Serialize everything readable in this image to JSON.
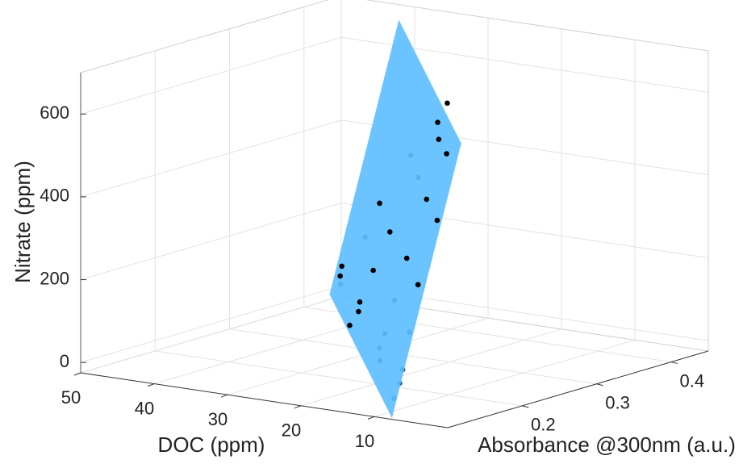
{
  "chart_data": {
    "type": "scatter3d",
    "xlabel": "DOC (ppm)",
    "ylabel": "Absorbance @300nm (a.u.)",
    "zlabel": "Nitrate (ppm)",
    "xlim": [
      0,
      50
    ],
    "ylim": [
      0.1,
      0.45
    ],
    "zlim": [
      -25,
      700
    ],
    "xticks": [
      10,
      20,
      30,
      40,
      50
    ],
    "yticks": [
      0.2,
      0.3,
      0.4
    ],
    "zticks": [
      0,
      200,
      400,
      600
    ],
    "grid": true,
    "surface": {
      "color": "#5bbcff",
      "x": [
        8,
        16.5,
        16.5,
        8
      ],
      "y": [
        0.104,
        0.104,
        0.197,
        0.197
      ],
      "z": [
        -25,
        251,
        865,
        589
      ]
    },
    "series": [
      {
        "color": "#1f5a85",
        "x": [
          12.35,
          11.11,
          14.59,
          15.71,
          10.49,
          10.59,
          8.36,
          10.72,
          10.42,
          8.16,
          8.07,
          8.23
        ],
        "y": [
          0.172,
          0.17,
          0.133,
          0.111,
          0.132,
          0.12,
          0.131,
          0.114,
          0.112,
          0.12,
          0.115,
          0.109
        ],
        "z": [
          562,
          513,
          379,
          274,
          238,
          163,
          167,
          132,
          103,
          83,
          53,
          19
        ]
      },
      {
        "color": "#000000",
        "x": [
          10.2,
          10.6,
          10.15,
          9.08,
          9.88,
          8.44,
          14.04,
          12.44,
          10.35,
          13.09,
          16.05,
          15.97,
          8.71,
          13.6,
          13.47,
          13.96
        ],
        "y": [
          0.2,
          0.191,
          0.188,
          0.188,
          0.169,
          0.169,
          0.147,
          0.145,
          0.147,
          0.129,
          0.116,
          0.113,
          0.146,
          0.116,
          0.113,
          0.106
        ],
        "z": [
          679,
          636,
          598,
          566,
          464,
          417,
          455,
          391,
          332,
          305,
          314,
          292,
          273,
          234,
          213,
          182
        ]
      }
    ]
  }
}
